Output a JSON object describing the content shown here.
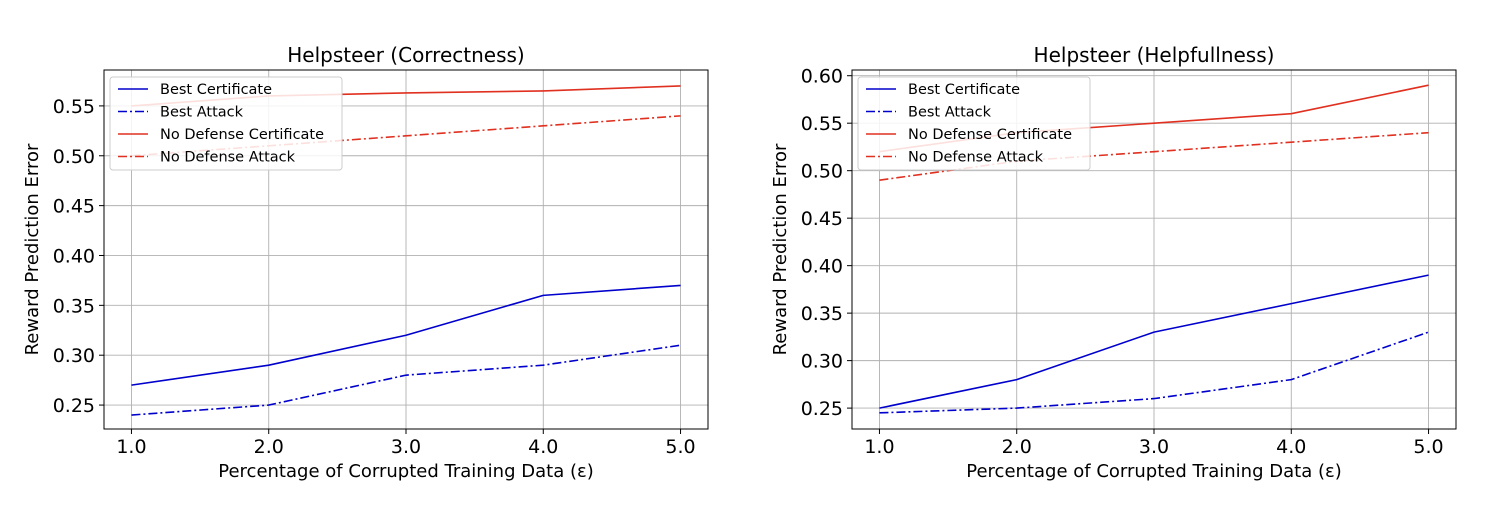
{
  "chart_data": [
    {
      "type": "line",
      "title": "Helpsteer (Correctness)",
      "xlabel": "Percentage of Corrupted Training Data (ε)",
      "ylabel": "Reward Prediction Error",
      "x": [
        1.0,
        2.0,
        3.0,
        4.0,
        5.0
      ],
      "x_tick_labels": [
        "1.0",
        "2.0",
        "3.0",
        "4.0",
        "5.0"
      ],
      "y_ticks": [
        0.25,
        0.3,
        0.35,
        0.4,
        0.45,
        0.5,
        0.55
      ],
      "y_tick_labels": [
        "0.25",
        "0.30",
        "0.35",
        "0.40",
        "0.45",
        "0.50",
        "0.55"
      ],
      "xlim": [
        0.8,
        5.2
      ],
      "ylim": [
        0.226,
        0.586
      ],
      "grid": true,
      "legend_position": "top-left",
      "series": [
        {
          "name": "Best Certificate",
          "color": "#0000cc",
          "dash": "solid",
          "values": [
            0.27,
            0.29,
            0.32,
            0.36,
            0.37
          ]
        },
        {
          "name": "Best Attack",
          "color": "#0000cc",
          "dash": "dashdot",
          "values": [
            0.24,
            0.25,
            0.28,
            0.29,
            0.31
          ]
        },
        {
          "name": "No Defense Certificate",
          "color": "#e03020",
          "dash": "solid",
          "values": [
            0.55,
            0.56,
            0.563,
            0.565,
            0.57
          ]
        },
        {
          "name": "No Defense Attack",
          "color": "#e03020",
          "dash": "dashdot",
          "values": [
            0.5,
            0.51,
            0.52,
            0.53,
            0.54
          ]
        }
      ]
    },
    {
      "type": "line",
      "title": "Helpsteer (Helpfullness)",
      "xlabel": "Percentage of Corrupted Training Data (ε)",
      "ylabel": "Reward Prediction Error",
      "x": [
        1.0,
        2.0,
        3.0,
        4.0,
        5.0
      ],
      "x_tick_labels": [
        "1.0",
        "2.0",
        "3.0",
        "4.0",
        "5.0"
      ],
      "y_ticks": [
        0.25,
        0.3,
        0.35,
        0.4,
        0.45,
        0.5,
        0.55,
        0.6
      ],
      "y_tick_labels": [
        "0.25",
        "0.30",
        "0.35",
        "0.40",
        "0.45",
        "0.50",
        "0.55",
        "0.60"
      ],
      "xlim": [
        0.8,
        5.2
      ],
      "ylim": [
        0.228,
        0.606
      ],
      "grid": true,
      "legend_position": "top-left",
      "series": [
        {
          "name": "Best Certificate",
          "color": "#0000cc",
          "dash": "solid",
          "values": [
            0.25,
            0.28,
            0.33,
            0.36,
            0.39
          ]
        },
        {
          "name": "Best Attack",
          "color": "#0000cc",
          "dash": "dashdot",
          "values": [
            0.245,
            0.25,
            0.26,
            0.28,
            0.33
          ]
        },
        {
          "name": "No Defense Certificate",
          "color": "#e03020",
          "dash": "solid",
          "values": [
            0.52,
            0.54,
            0.55,
            0.56,
            0.59
          ]
        },
        {
          "name": "No Defense Attack",
          "color": "#e03020",
          "dash": "dashdot",
          "values": [
            0.49,
            0.51,
            0.52,
            0.53,
            0.54
          ]
        }
      ]
    }
  ]
}
